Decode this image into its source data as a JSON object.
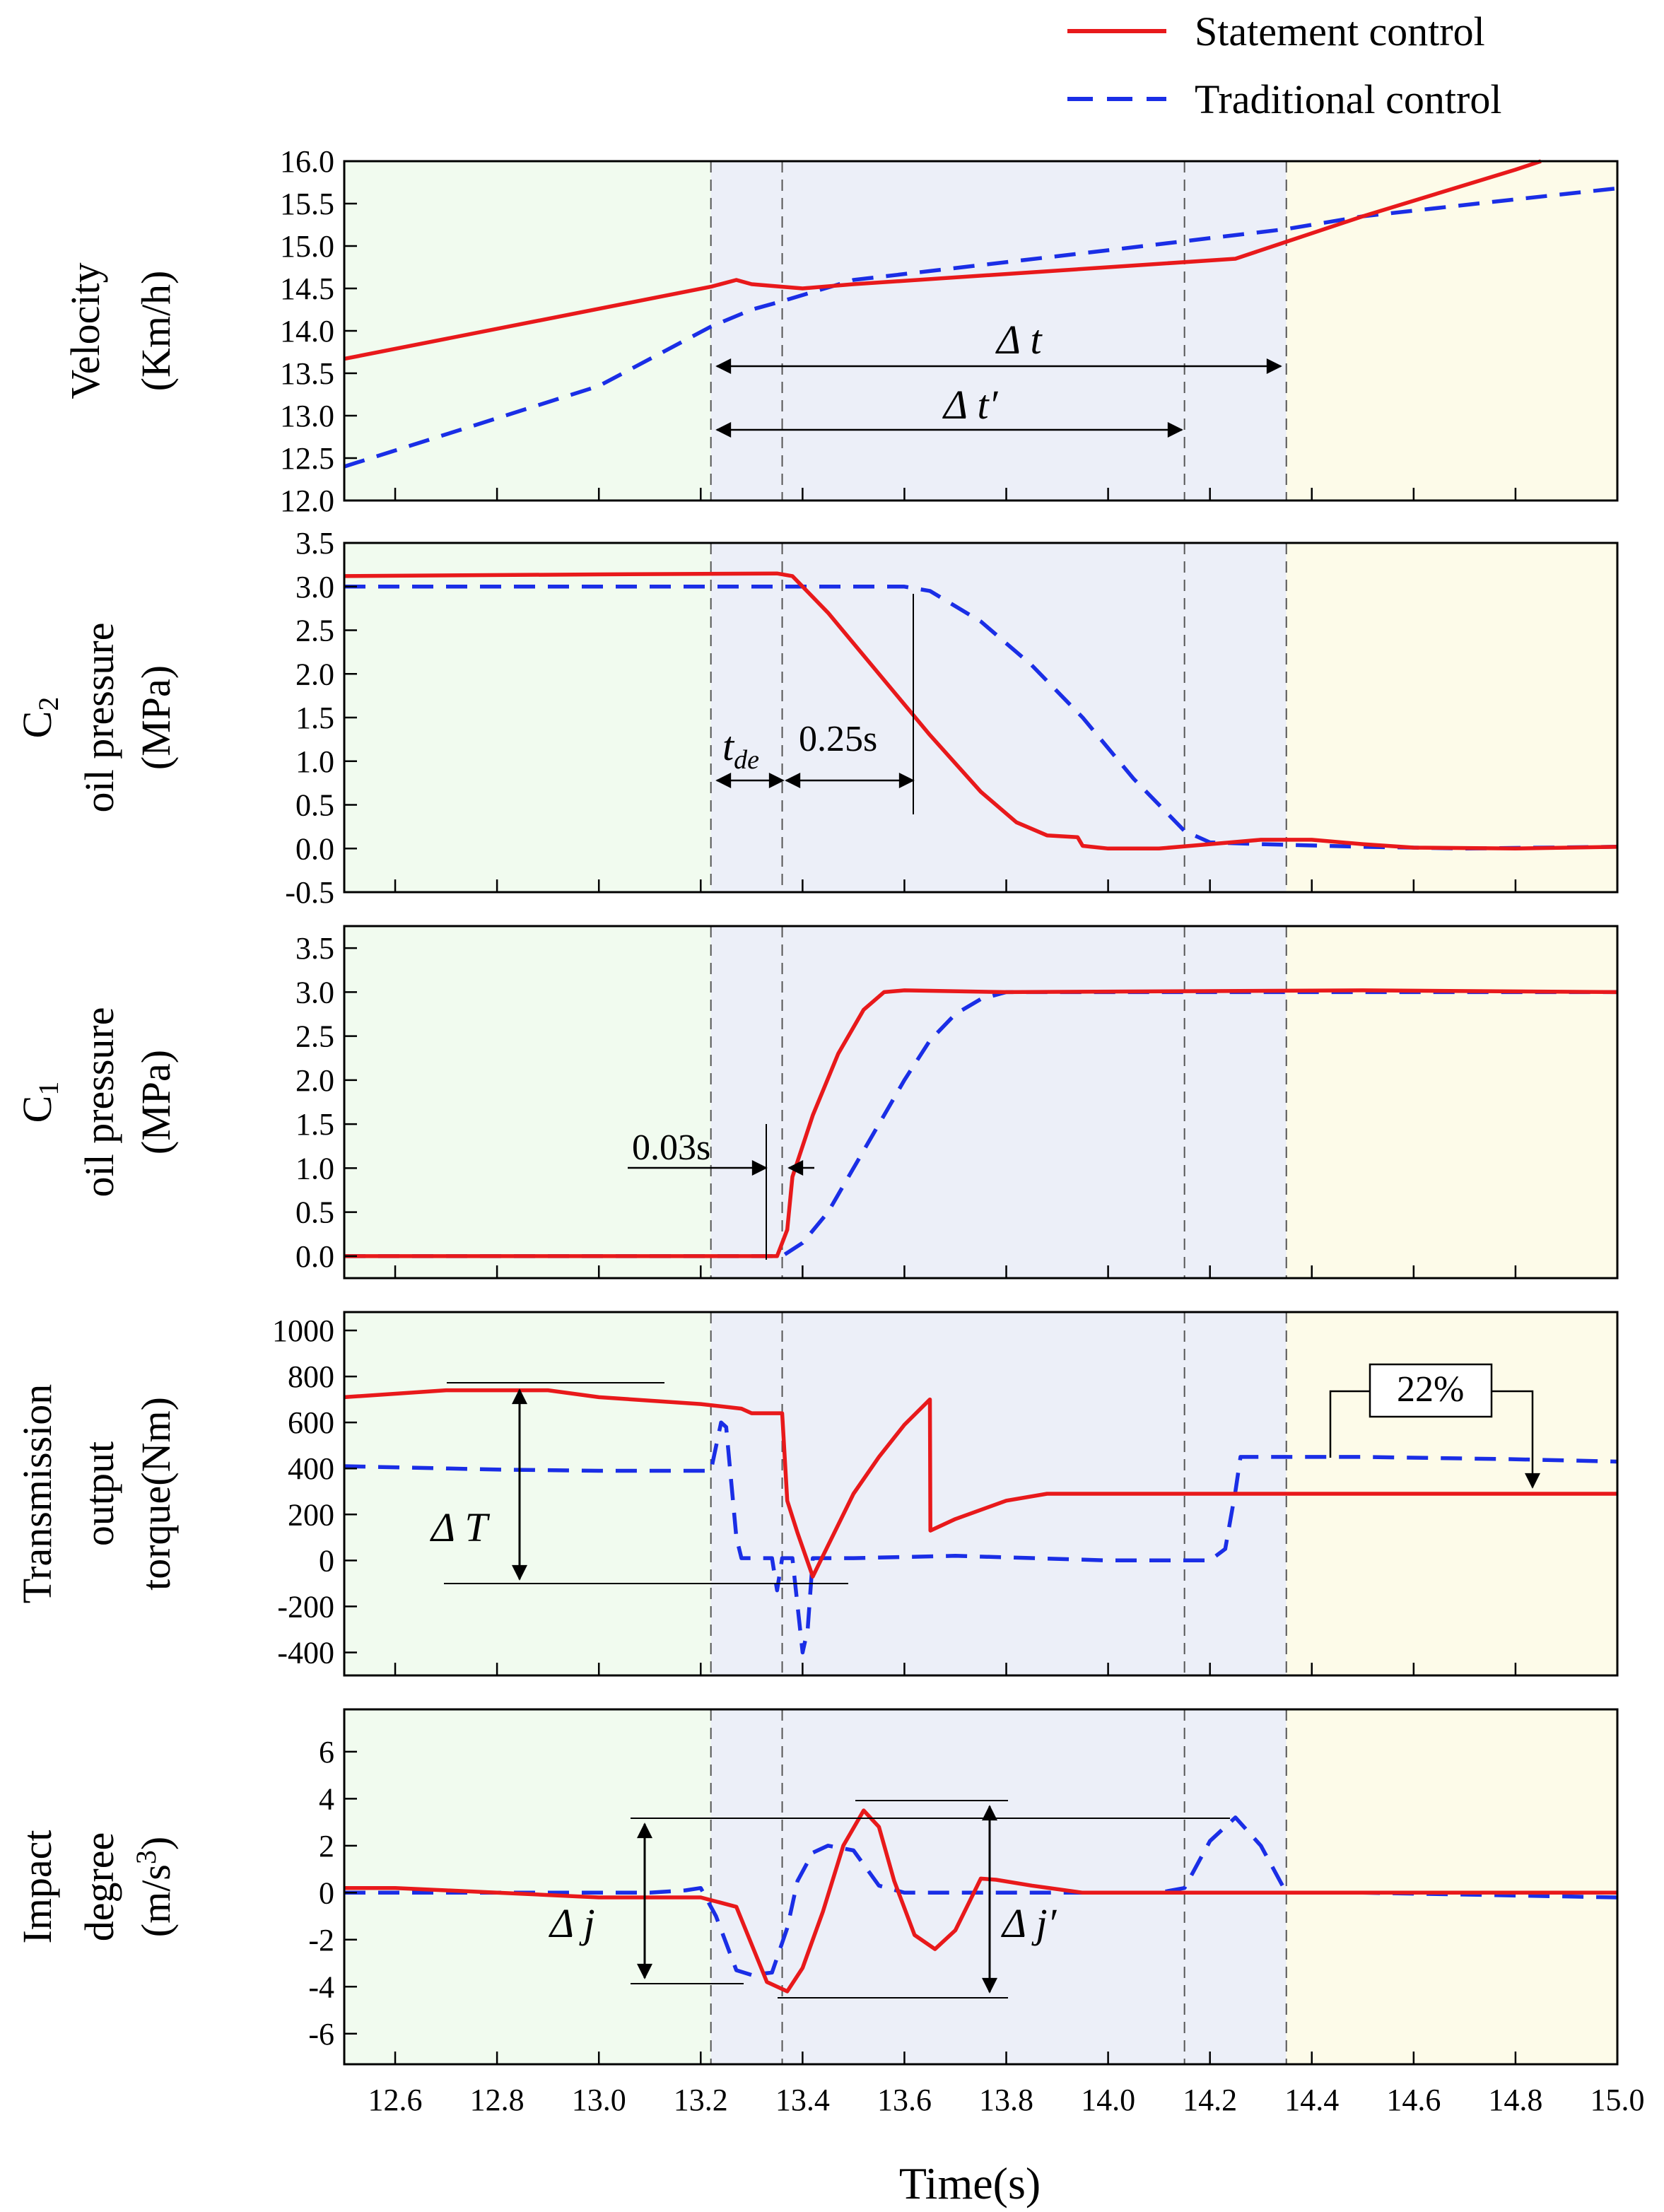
{
  "legend": [
    {
      "label": "Statement control",
      "color": "#e8191b",
      "dash": "solid"
    },
    {
      "label": "Traditional control",
      "color": "#1a2ee6",
      "dash": "dashed"
    }
  ],
  "colors": {
    "region_pre": "#f1fbef",
    "region_shift": "#eceff8",
    "region_post": "#fdfbe9"
  },
  "chart_data": {
    "type": "line",
    "xlabel": "Time(s)",
    "xlim": [
      12.5,
      15.0
    ],
    "xticks": [
      "12.6",
      "12.8",
      "13.0",
      "13.2",
      "13.4",
      "13.6",
      "13.8",
      "14.0",
      "14.2",
      "14.4",
      "14.6",
      "14.8",
      "15.0"
    ],
    "regions": [
      {
        "name": "pre-shift",
        "x0": 12.5,
        "x1": 13.22
      },
      {
        "name": "shift",
        "x0": 13.22,
        "x1": 14.35
      },
      {
        "name": "post-shift",
        "x0": 14.35,
        "x1": 15.0
      }
    ],
    "vlines": [
      13.22,
      13.36,
      14.15,
      14.35
    ],
    "panels": [
      {
        "id": "velocity",
        "ylabel": [
          "Velocity",
          "(Km/h)"
        ],
        "ylim": [
          12.0,
          16.0
        ],
        "yticks": [
          "12.0",
          "12.5",
          "13.0",
          "13.5",
          "14.0",
          "14.5",
          "15.0",
          "15.5",
          "16.0"
        ],
        "series": [
          {
            "name": "Statement control",
            "x": [
              12.5,
              13.22,
              13.27,
              13.3,
              13.36,
              13.4,
              13.5,
              14.0,
              14.25,
              14.35,
              14.5,
              14.8,
              14.85
            ],
            "y": [
              13.67,
              14.52,
              14.6,
              14.55,
              14.52,
              14.5,
              14.55,
              14.75,
              14.85,
              15.05,
              15.35,
              15.9,
              16.0
            ]
          },
          {
            "name": "Traditional control",
            "x": [
              12.5,
              13.0,
              13.22,
              13.3,
              13.36,
              13.5,
              14.0,
              14.35,
              14.5,
              14.8,
              15.0
            ],
            "y": [
              12.4,
              13.35,
              14.05,
              14.25,
              14.35,
              14.6,
              14.95,
              15.2,
              15.35,
              15.55,
              15.68
            ]
          }
        ]
      },
      {
        "id": "c2",
        "ylabel": [
          "C2",
          "oil pressure",
          "(MPa)"
        ],
        "ylim": [
          -0.5,
          3.5
        ],
        "yticks": [
          "-0.5",
          "0.0",
          "0.5",
          "1.0",
          "1.5",
          "2.0",
          "2.5",
          "3.0",
          "3.5"
        ],
        "series": [
          {
            "name": "Statement control",
            "x": [
              12.5,
              13.0,
              13.35,
              13.38,
              13.45,
              13.55,
              13.65,
              13.75,
              13.82,
              13.88,
              13.94,
              13.95,
              14.0,
              14.1,
              14.2,
              14.3,
              14.4,
              14.5,
              14.6,
              14.8,
              15.0
            ],
            "y": [
              3.12,
              3.14,
              3.15,
              3.12,
              2.7,
              2.0,
              1.3,
              0.65,
              0.3,
              0.15,
              0.13,
              0.03,
              0.0,
              0.0,
              0.05,
              0.1,
              0.1,
              0.05,
              0.01,
              0.0,
              0.02
            ]
          },
          {
            "name": "Traditional control",
            "x": [
              12.5,
              13.0,
              13.36,
              13.6,
              13.65,
              13.75,
              13.85,
              13.95,
              14.05,
              14.15,
              14.2,
              14.3,
              14.5,
              14.7,
              15.0
            ],
            "y": [
              3.0,
              3.0,
              3.0,
              3.0,
              2.95,
              2.6,
              2.1,
              1.5,
              0.8,
              0.2,
              0.07,
              0.05,
              0.02,
              0.0,
              0.02
            ]
          }
        ]
      },
      {
        "id": "c1",
        "ylabel": [
          "C1",
          "oil pressure",
          "(MPa)"
        ],
        "ylim": [
          -0.25,
          3.75
        ],
        "yticks": [
          "0.0",
          "0.5",
          "1.0",
          "1.5",
          "2.0",
          "2.5",
          "3.0",
          "3.5"
        ],
        "series": [
          {
            "name": "Statement control",
            "x": [
              12.5,
              13.3,
              13.35,
              13.37,
              13.38,
              13.42,
              13.47,
              13.52,
              13.56,
              13.6,
              13.8,
              14.5,
              15.0
            ],
            "y": [
              0.0,
              0.0,
              0.0,
              0.3,
              0.9,
              1.6,
              2.3,
              2.8,
              3.0,
              3.02,
              3.0,
              3.02,
              3.0
            ]
          },
          {
            "name": "Traditional control",
            "x": [
              12.5,
              13.3,
              13.36,
              13.4,
              13.45,
              13.5,
              13.55,
              13.6,
              13.65,
              13.7,
              13.75,
              13.8,
              15.0
            ],
            "y": [
              0.0,
              0.0,
              0.0,
              0.15,
              0.5,
              1.0,
              1.5,
              2.0,
              2.45,
              2.75,
              2.92,
              3.0,
              3.0
            ]
          }
        ]
      },
      {
        "id": "torque",
        "ylabel": [
          "Transmission",
          "output",
          "torque(Nm)"
        ],
        "ylim": [
          -500,
          1080
        ],
        "yticks": [
          "-400",
          "-200",
          "0",
          "200",
          "400",
          "600",
          "800",
          "1000"
        ],
        "series": [
          {
            "name": "Statement control",
            "x": [
              12.5,
              12.7,
              12.9,
              13.0,
              13.2,
              13.28,
              13.3,
              13.36,
              13.37,
              13.39,
              13.42,
              13.44,
              13.5,
              13.55,
              13.6,
              13.65,
              13.651,
              13.7,
              13.8,
              13.88,
              14.0,
              14.5,
              15.0
            ],
            "y": [
              710,
              740,
              740,
              710,
              680,
              660,
              640,
              640,
              260,
              120,
              -70,
              20,
              290,
              450,
              590,
              700,
              130,
              180,
              260,
              290,
              290,
              290,
              290
            ]
          },
          {
            "name": "Traditional control",
            "x": [
              12.5,
              12.8,
              13.0,
              13.2,
              13.22,
              13.24,
              13.25,
              13.27,
              13.28,
              13.3,
              13.34,
              13.35,
              13.36,
              13.38,
              13.4,
              13.41,
              13.42,
              13.44,
              13.5,
              13.7,
              14.0,
              14.2,
              14.23,
              14.25,
              14.26,
              14.5,
              14.8,
              15.0
            ],
            "y": [
              410,
              395,
              390,
              390,
              390,
              600,
              580,
              100,
              10,
              10,
              10,
              -130,
              10,
              10,
              -400,
              -300,
              10,
              10,
              10,
              20,
              0,
              0,
              50,
              300,
              450,
              450,
              440,
              430
            ]
          }
        ]
      },
      {
        "id": "impact",
        "ylabel": [
          "Impact",
          "degree",
          "(m/s3)"
        ],
        "ylim": [
          -7.3,
          7.8
        ],
        "yticks": [
          "-6",
          "-4",
          "-2",
          "0",
          "2",
          "4",
          "6"
        ],
        "series": [
          {
            "name": "Statement control",
            "x": [
              12.5,
              12.6,
              12.7,
              12.8,
              12.9,
              13.0,
              13.05,
              13.1,
              13.2,
              13.27,
              13.3,
              13.33,
              13.37,
              13.4,
              13.44,
              13.48,
              13.52,
              13.55,
              13.58,
              13.62,
              13.66,
              13.7,
              13.75,
              13.78,
              13.85,
              13.95,
              14.1,
              14.5,
              15.0
            ],
            "y": [
              0.2,
              0.2,
              0.1,
              0.0,
              -0.1,
              -0.2,
              -0.2,
              -0.2,
              -0.2,
              -0.6,
              -2.2,
              -3.8,
              -4.2,
              -3.2,
              -0.8,
              2.0,
              3.5,
              2.8,
              0.5,
              -1.8,
              -2.4,
              -1.6,
              0.6,
              0.55,
              0.3,
              0.0,
              0.0,
              0.0,
              0.0
            ]
          },
          {
            "name": "Traditional control",
            "x": [
              12.5,
              13.0,
              13.1,
              13.17,
              13.2,
              13.23,
              13.27,
              13.3,
              13.34,
              13.37,
              13.39,
              13.42,
              13.45,
              13.5,
              13.55,
              13.6,
              14.1,
              14.15,
              14.2,
              14.25,
              14.3,
              14.35,
              14.5,
              15.0
            ],
            "y": [
              0.0,
              0.0,
              0.0,
              0.1,
              0.2,
              -1.0,
              -3.3,
              -3.5,
              -3.4,
              -1.5,
              0.5,
              1.7,
              2.0,
              1.8,
              0.3,
              0.0,
              0.0,
              0.2,
              2.2,
              3.2,
              2.0,
              0.0,
              0.0,
              -0.2
            ]
          }
        ]
      }
    ],
    "annotations": {
      "velocity": {
        "delta_t": "Δ t",
        "delta_t_prime": "Δ t′"
      },
      "c2": {
        "t_de": "t",
        "t_de_sub": "de",
        "dur": "0.25s"
      },
      "c1": {
        "dur": "0.03s"
      },
      "torque": {
        "delta_T": "Δ T",
        "percent": "22%"
      },
      "impact": {
        "delta_j": "Δ j",
        "delta_j_prime": "Δ j′"
      }
    }
  }
}
